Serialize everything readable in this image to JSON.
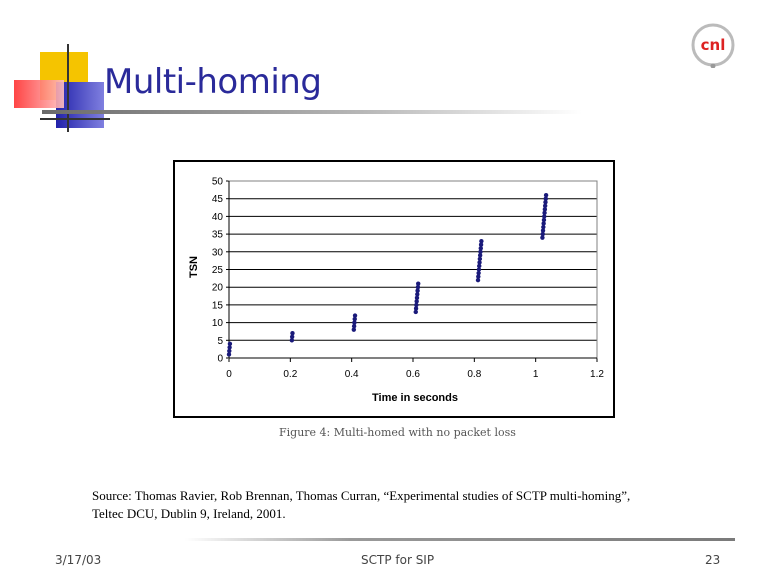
{
  "slide": {
    "title": "Multi-homing",
    "caption": "Figure 4: Multi-homed with no packet loss",
    "source_line1": "Source: Thomas Ravier, Rob Brennan, Thomas Curran, “Experimental studies of SCTP multi-homing”,",
    "source_line2": "Teltec DCU, Dublin 9, Ireland, 2001.",
    "logo_text": "cnl",
    "footer": {
      "date": "3/17/03",
      "center": "SCTP for SIP",
      "page": "23"
    }
  },
  "colors": {
    "title": "#2a2a9a",
    "points": "#1a1a7a",
    "deco_yellow": "#f2c200",
    "deco_red": "#ff5050",
    "deco_blue": "#3333cc",
    "logo_red": "#dd2222"
  },
  "chart_data": {
    "type": "scatter",
    "xlabel": "Time in seconds",
    "ylabel": "TSN",
    "xlim": [
      0,
      1.2
    ],
    "ylim": [
      0,
      50
    ],
    "xticks": [
      "0",
      "0.2",
      "0.4",
      "0.6",
      "0.8",
      "1",
      "1.2"
    ],
    "yticks": [
      "0",
      "5",
      "10",
      "15",
      "20",
      "25",
      "30",
      "35",
      "40",
      "45",
      "50"
    ],
    "grid": "horizontal",
    "points": [
      [
        0.0,
        1
      ],
      [
        0.001,
        2
      ],
      [
        0.002,
        3
      ],
      [
        0.003,
        4
      ],
      [
        0.205,
        5
      ],
      [
        0.206,
        6
      ],
      [
        0.207,
        7
      ],
      [
        0.407,
        8
      ],
      [
        0.408,
        9
      ],
      [
        0.409,
        10
      ],
      [
        0.41,
        11
      ],
      [
        0.411,
        12
      ],
      [
        0.609,
        13
      ],
      [
        0.61,
        14
      ],
      [
        0.611,
        15
      ],
      [
        0.612,
        16
      ],
      [
        0.613,
        17
      ],
      [
        0.614,
        18
      ],
      [
        0.615,
        19
      ],
      [
        0.616,
        20
      ],
      [
        0.617,
        21
      ],
      [
        0.812,
        22
      ],
      [
        0.813,
        23
      ],
      [
        0.814,
        24
      ],
      [
        0.815,
        25
      ],
      [
        0.816,
        26
      ],
      [
        0.817,
        27
      ],
      [
        0.818,
        28
      ],
      [
        0.819,
        29
      ],
      [
        0.82,
        30
      ],
      [
        0.821,
        31
      ],
      [
        0.822,
        32
      ],
      [
        0.823,
        33
      ],
      [
        1.022,
        34
      ],
      [
        1.023,
        35
      ],
      [
        1.024,
        36
      ],
      [
        1.025,
        37
      ],
      [
        1.026,
        38
      ],
      [
        1.027,
        39
      ],
      [
        1.028,
        40
      ],
      [
        1.029,
        41
      ],
      [
        1.03,
        42
      ],
      [
        1.031,
        43
      ],
      [
        1.032,
        44
      ],
      [
        1.033,
        45
      ],
      [
        1.034,
        46
      ]
    ]
  }
}
